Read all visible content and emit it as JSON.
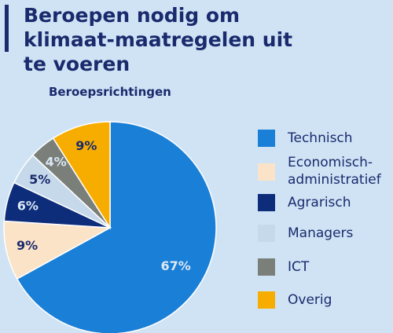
{
  "chart_data": {
    "type": "pie",
    "title": "Beroepen nodig om klimaat-maatregelen uit te voeren",
    "subtitle": "Beroepsrichtingen",
    "categories": [
      "Technisch",
      "Economisch-administratief",
      "Agrarisch",
      "Managers",
      "ICT",
      "Overig"
    ],
    "values": [
      67,
      9,
      6,
      5,
      4,
      9
    ],
    "value_labels": [
      "67%",
      "9%",
      "6%",
      "5%",
      "4%",
      "9%"
    ],
    "colors": [
      "#1a7fd6",
      "#fbe3c8",
      "#0d2d7a",
      "#c5d9ea",
      "#7a7f7a",
      "#f6ad00"
    ],
    "legend": "right"
  }
}
